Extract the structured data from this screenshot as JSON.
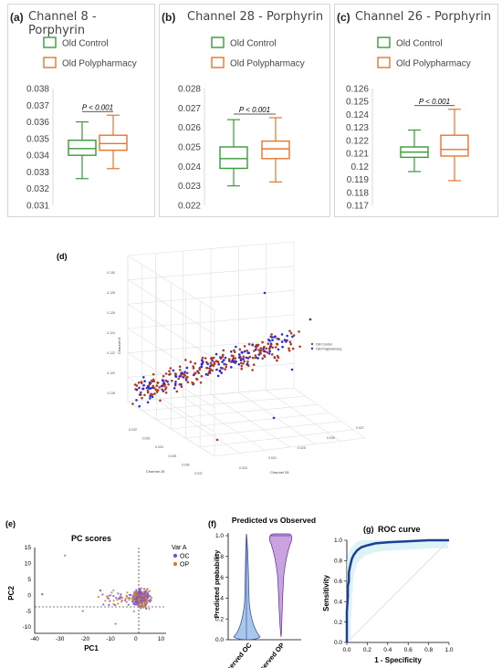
{
  "colors": {
    "control": "#3a9a3a",
    "polypharmacy": "#e8742c",
    "oc_point": "#7a52d6",
    "op_point": "#c8803a",
    "roc_line": "#1c3f94",
    "violin_oc": "#a9c7ea",
    "violin_op": "#c9a3df",
    "scatter3d_red": "#b03a1f",
    "scatter3d_blue": "#2a2adf"
  },
  "panel_a": {
    "label": "(a)",
    "title": "Channel 8 - Porphyrin",
    "legend": [
      "Old Control",
      "Old Polypharmacy"
    ],
    "pvalue": "P < 0.001",
    "yticks": [
      "0.038",
      "0.037",
      "0.036",
      "0.035",
      "0.034",
      "0.033",
      "0.032",
      "0.031"
    ]
  },
  "panel_b": {
    "label": "(b)",
    "title": "Channel 28 - Porphyrin",
    "legend": [
      "Old Control",
      "Old Polypharmacy"
    ],
    "pvalue": "P < 0.001",
    "yticks": [
      "0.028",
      "0.027",
      "0.026",
      "0.025",
      "0.024",
      "0.023",
      "0.022"
    ]
  },
  "panel_c": {
    "label": "(c)",
    "title": "Channel 26 - Porphyrin",
    "legend": [
      "Old Control",
      "Old Polypharmacy"
    ],
    "pvalue": "P < 0.001",
    "yticks": [
      "0.126",
      "0.125",
      "0.124",
      "0.123",
      "0.122",
      "0.121",
      "0.12",
      "0.119",
      "0.118",
      "0.117"
    ]
  },
  "panel_d": {
    "label": "(d)",
    "zlabel": "Channel 8",
    "xlabel": "Channel 26",
    "ylabel": "Channel 28",
    "legend": [
      "Old Control",
      "Old Polypharmacy"
    ],
    "zticks": [
      "0.130",
      "0.128",
      "0.126",
      "0.124",
      "0.122",
      "0.120",
      "0.118"
    ],
    "xticks": [
      "0.032",
      "0.033",
      "0.034",
      "0.035",
      "0.036",
      "0.037"
    ],
    "yticks": [
      "0.023",
      "0.024",
      "0.025",
      "0.026",
      "0.027"
    ]
  },
  "panel_e": {
    "label": "(e)",
    "title": "PC scores",
    "xlabel": "PC1",
    "ylabel": "PC2",
    "legend_title": "Var A",
    "legend": [
      "OC",
      "OP"
    ],
    "xticks": [
      "-40",
      "-30",
      "-20",
      "-10",
      "0",
      "10"
    ],
    "yticks": [
      "15",
      "10",
      "5",
      "0",
      "-5",
      "-10"
    ]
  },
  "panel_f": {
    "label": "(f)",
    "title": "Predicted vs Observed",
    "ylabel": "Predicted probability",
    "categories": [
      "Observed OC",
      "Observed OP"
    ],
    "yticks": [
      "1.0",
      "0.8",
      "0.6",
      "0.4",
      "0.2",
      "0.0"
    ]
  },
  "panel_g": {
    "label": "(g)",
    "title": "ROC curve",
    "xlabel": "1 - Specificity",
    "ylabel": "Sensitivity",
    "xticks": [
      "0.0",
      "0.2",
      "0.4",
      "0.6",
      "0.8",
      "1.0"
    ],
    "yticks": [
      "0.0",
      "0.2",
      "0.4",
      "0.6",
      "0.8",
      "1.0"
    ]
  },
  "chart_data": [
    {
      "type": "box",
      "id": "a",
      "categories": [
        "Old Control",
        "Old Polypharmacy"
      ],
      "ylim": [
        0.031,
        0.038
      ],
      "boxes": [
        {
          "min": 0.0326,
          "q1": 0.034,
          "median": 0.0344,
          "q3": 0.0349,
          "max": 0.036
        },
        {
          "min": 0.0332,
          "q1": 0.0343,
          "median": 0.0347,
          "q3": 0.0352,
          "max": 0.0364
        }
      ]
    },
    {
      "type": "box",
      "id": "b",
      "categories": [
        "Old Control",
        "Old Polypharmacy"
      ],
      "ylim": [
        0.022,
        0.028
      ],
      "boxes": [
        {
          "min": 0.023,
          "q1": 0.0239,
          "median": 0.0244,
          "q3": 0.025,
          "max": 0.0264
        },
        {
          "min": 0.0232,
          "q1": 0.0244,
          "median": 0.0249,
          "q3": 0.0253,
          "max": 0.0265
        }
      ]
    },
    {
      "type": "box",
      "id": "c",
      "categories": [
        "Old Control",
        "Old Polypharmacy"
      ],
      "ylim": [
        0.117,
        0.126
      ],
      "boxes": [
        {
          "min": 0.1196,
          "q1": 0.1207,
          "median": 0.1211,
          "q3": 0.1215,
          "max": 0.1228
        },
        {
          "min": 0.1189,
          "q1": 0.1208,
          "median": 0.1213,
          "q3": 0.1224,
          "max": 0.1244
        }
      ]
    },
    {
      "type": "roc",
      "id": "g",
      "xlim": [
        0,
        1
      ],
      "ylim": [
        0,
        1
      ],
      "x": [
        0.0,
        0.0,
        0.01,
        0.01,
        0.02,
        0.02,
        0.03,
        0.04,
        0.05,
        0.07,
        0.1,
        0.14,
        0.2,
        0.28,
        0.4,
        0.6,
        0.8,
        1.0
      ],
      "y": [
        0.0,
        0.3,
        0.45,
        0.55,
        0.6,
        0.68,
        0.74,
        0.78,
        0.82,
        0.86,
        0.9,
        0.93,
        0.95,
        0.97,
        0.98,
        0.99,
        1.0,
        1.0
      ]
    }
  ]
}
